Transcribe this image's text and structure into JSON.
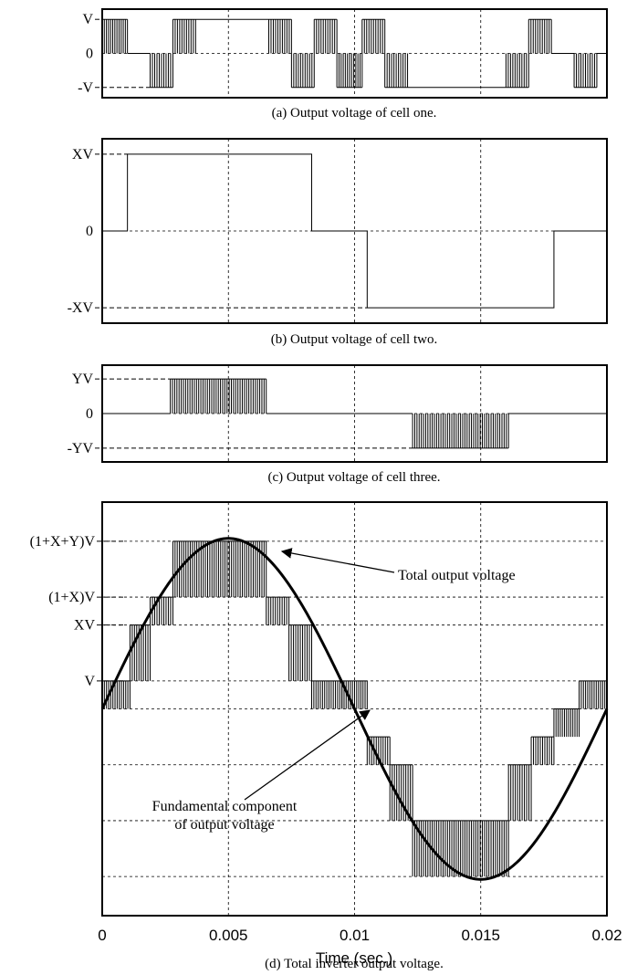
{
  "chart_data": [
    {
      "type": "line",
      "panel": "a",
      "caption": "(a) Output voltage of cell one.",
      "yticks": [
        {
          "value": 1,
          "label": "V"
        },
        {
          "value": 0,
          "label": "0"
        },
        {
          "value": -1,
          "label": "-V"
        }
      ],
      "ylim": [
        -1.3,
        1.3
      ],
      "xlim": [
        0,
        0.02
      ],
      "segments": [
        {
          "from": 0,
          "to": 0.001,
          "level": 1,
          "pwm": true
        },
        {
          "from": 0.001,
          "to": 0.0019,
          "level": 0
        },
        {
          "from": 0.0019,
          "to": 0.0028,
          "level": -1,
          "pwm": true
        },
        {
          "from": 0.0028,
          "to": 0.0037,
          "level": 1,
          "pwm": true
        },
        {
          "from": 0.0037,
          "to": 0.0066,
          "level": 1
        },
        {
          "from": 0.0066,
          "to": 0.0075,
          "level": 1,
          "pwm": true
        },
        {
          "from": 0.0075,
          "to": 0.0084,
          "level": -1,
          "pwm": true
        },
        {
          "from": 0.0084,
          "to": 0.0093,
          "level": 1,
          "pwm": true
        },
        {
          "from": 0.0093,
          "to": 0.0103,
          "level": -1,
          "pwm": true
        },
        {
          "from": 0.0103,
          "to": 0.0112,
          "level": 1,
          "pwm": true
        },
        {
          "from": 0.0112,
          "to": 0.0121,
          "level": -1,
          "pwm": true
        },
        {
          "from": 0.0121,
          "to": 0.016,
          "level": -1
        },
        {
          "from": 0.016,
          "to": 0.0169,
          "level": -1,
          "pwm": true
        },
        {
          "from": 0.0169,
          "to": 0.0178,
          "level": 1,
          "pwm": true
        },
        {
          "from": 0.0178,
          "to": 0.0187,
          "level": 0
        },
        {
          "from": 0.0187,
          "to": 0.0196,
          "level": -1,
          "pwm": true
        },
        {
          "from": 0.0196,
          "to": 0.02,
          "level": 0
        }
      ]
    },
    {
      "type": "line",
      "panel": "b",
      "caption": "(b) Output voltage of cell two.",
      "yticks": [
        {
          "value": 1,
          "label": "XV"
        },
        {
          "value": 0,
          "label": "0"
        },
        {
          "value": -1,
          "label": "-XV"
        }
      ],
      "ylim": [
        -1.2,
        1.2
      ],
      "xlim": [
        0,
        0.02
      ],
      "segments": [
        {
          "from": 0,
          "to": 0.001,
          "level": 0
        },
        {
          "from": 0.001,
          "to": 0.0083,
          "level": 1
        },
        {
          "from": 0.0083,
          "to": 0.0105,
          "level": 0
        },
        {
          "from": 0.0105,
          "to": 0.0179,
          "level": -1
        },
        {
          "from": 0.0179,
          "to": 0.02,
          "level": 0
        }
      ]
    },
    {
      "type": "line",
      "panel": "c",
      "caption": "(c) Output voltage of cell three.",
      "yticks": [
        {
          "value": 1,
          "label": "YV"
        },
        {
          "value": 0,
          "label": "0"
        },
        {
          "value": -1,
          "label": "-YV"
        }
      ],
      "ylim": [
        -1.4,
        1.4
      ],
      "xlim": [
        0,
        0.02
      ],
      "segments": [
        {
          "from": 0,
          "to": 0.0027,
          "level": 0
        },
        {
          "from": 0.0027,
          "to": 0.0065,
          "level": 1,
          "pwm": true
        },
        {
          "from": 0.0065,
          "to": 0.0123,
          "level": 0
        },
        {
          "from": 0.0123,
          "to": 0.0161,
          "level": -1,
          "pwm": true
        },
        {
          "from": 0.0161,
          "to": 0.02,
          "level": 0
        }
      ]
    },
    {
      "type": "line",
      "panel": "d",
      "caption": "(d) Total inverter output voltage.",
      "xlabel": "Time (sec.)",
      "xlim": [
        0,
        0.02
      ],
      "ylim": [
        -3.7,
        3.7
      ],
      "xticks": [
        {
          "value": 0,
          "label": "0"
        },
        {
          "value": 0.005,
          "label": "0.005"
        },
        {
          "value": 0.01,
          "label": "0.01"
        },
        {
          "value": 0.015,
          "label": "0.015"
        },
        {
          "value": 0.02,
          "label": "0.02"
        }
      ],
      "yticks": [
        {
          "value": 3,
          "label": "(1+X+Y)V"
        },
        {
          "value": 2,
          "label": "(1+X)V"
        },
        {
          "value": 1.5,
          "label": "XV"
        },
        {
          "value": 0.5,
          "label": "V"
        },
        {
          "value": 0,
          "label": ""
        },
        {
          "value": -1,
          "label": ""
        },
        {
          "value": -2,
          "label": ""
        },
        {
          "value": -3,
          "label": ""
        }
      ],
      "series": [
        {
          "role": "fundamental",
          "amplitude": 3.05,
          "frequency_hz": 50
        },
        {
          "role": "total"
        }
      ],
      "total_steps": [
        {
          "from": 0,
          "to": 0.0011,
          "low": 0,
          "high": 0.5
        },
        {
          "from": 0.0011,
          "to": 0.0019,
          "low": 0.5,
          "high": 1.5
        },
        {
          "from": 0.0019,
          "to": 0.0028,
          "low": 1.5,
          "high": 2
        },
        {
          "from": 0.0028,
          "to": 0.0065,
          "low": 2,
          "high": 3
        },
        {
          "from": 0.0065,
          "to": 0.0074,
          "low": 1.5,
          "high": 2
        },
        {
          "from": 0.0074,
          "to": 0.0083,
          "low": 0.5,
          "high": 1.5
        },
        {
          "from": 0.0083,
          "to": 0.0095,
          "low": 0,
          "high": 0.5
        },
        {
          "from": 0.0095,
          "to": 0.0105,
          "low": 0,
          "high": 0.5
        },
        {
          "from": 0.0105,
          "to": 0.0114,
          "low": -1,
          "high": -0.5
        },
        {
          "from": 0.0114,
          "to": 0.0123,
          "low": -2,
          "high": -1
        },
        {
          "from": 0.0123,
          "to": 0.0161,
          "low": -3,
          "high": -2
        },
        {
          "from": 0.0161,
          "to": 0.017,
          "low": -2,
          "high": -1
        },
        {
          "from": 0.017,
          "to": 0.0179,
          "low": -1,
          "high": -0.5
        },
        {
          "from": 0.0179,
          "to": 0.0189,
          "low": -0.5,
          "high": 0
        },
        {
          "from": 0.0189,
          "to": 0.02,
          "low": 0,
          "high": 0.5
        }
      ],
      "annotations": [
        {
          "text": "Total output voltage"
        },
        {
          "text": "Fundamental component",
          "text2": "of output voltage"
        }
      ]
    }
  ],
  "colors": {
    "line": "#000000",
    "grid": "#000000",
    "background": "#ffffff"
  }
}
